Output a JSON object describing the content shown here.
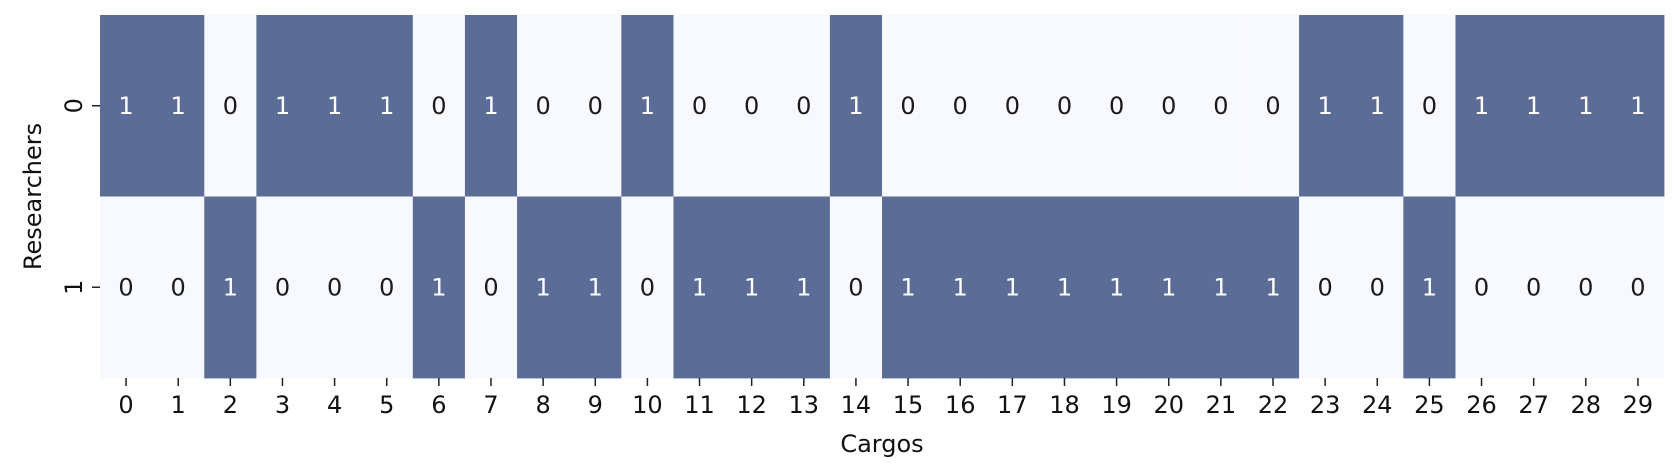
{
  "chart_data": {
    "type": "heatmap",
    "title": "",
    "xlabel": "Cargos",
    "ylabel": "Researchers",
    "x_ticks": [
      "0",
      "1",
      "2",
      "3",
      "4",
      "5",
      "6",
      "7",
      "8",
      "9",
      "10",
      "11",
      "12",
      "13",
      "14",
      "15",
      "16",
      "17",
      "18",
      "19",
      "20",
      "21",
      "22",
      "23",
      "24",
      "25",
      "26",
      "27",
      "28",
      "29"
    ],
    "y_ticks": [
      "0",
      "1"
    ],
    "values": [
      [
        1,
        1,
        0,
        1,
        1,
        1,
        0,
        1,
        0,
        0,
        1,
        0,
        0,
        0,
        1,
        0,
        0,
        0,
        0,
        0,
        0,
        0,
        0,
        1,
        1,
        0,
        1,
        1,
        1,
        1
      ],
      [
        0,
        0,
        1,
        0,
        0,
        0,
        1,
        0,
        1,
        1,
        0,
        1,
        1,
        1,
        0,
        1,
        1,
        1,
        1,
        1,
        1,
        1,
        1,
        0,
        0,
        1,
        0,
        0,
        0,
        0
      ]
    ],
    "colorbar": false,
    "colors": {
      "high": "#5b6d96",
      "low": "#f8f9fe",
      "text_on_high": "#ffffff",
      "text_on_low": "#1a1a1a"
    }
  }
}
